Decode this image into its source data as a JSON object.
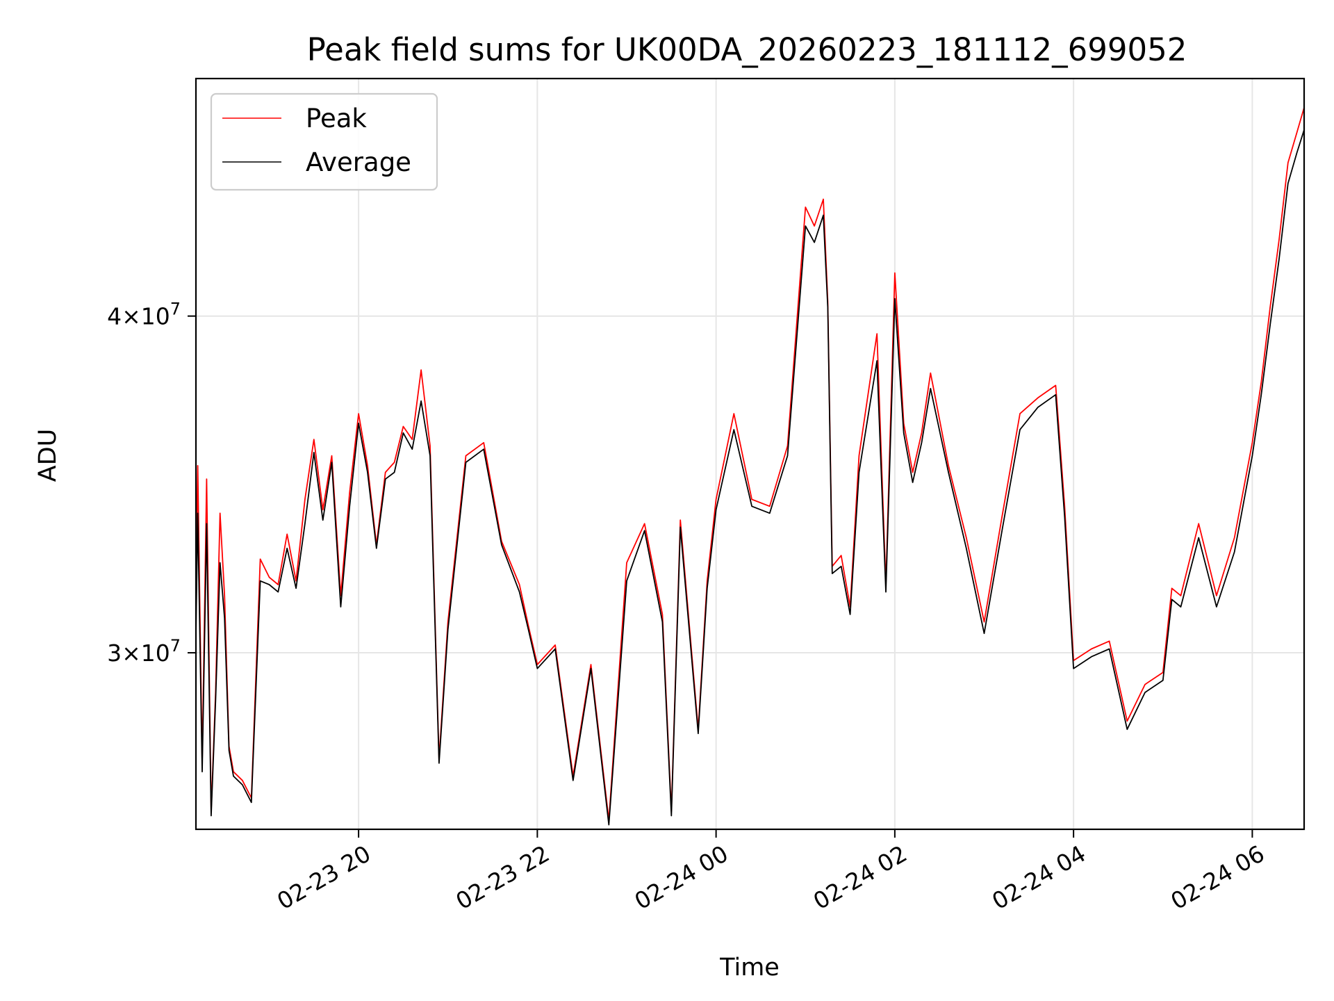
{
  "chart_data": {
    "type": "line",
    "title": "Peak field sums for UK00DA_20260223_181112_699052",
    "xlabel": "Time",
    "ylabel": "ADU",
    "x_range_hours": [
      -1.82,
      10.58
    ],
    "x_ticks": [
      {
        "hour": 0,
        "label": "02-23 20"
      },
      {
        "hour": 2,
        "label": "02-23 22"
      },
      {
        "hour": 4,
        "label": "02-24 00"
      },
      {
        "hour": 6,
        "label": "02-24 02"
      },
      {
        "hour": 8,
        "label": "02-24 04"
      },
      {
        "hour": 10,
        "label": "02-24 06"
      }
    ],
    "y_scale": "log",
    "ylim": [
      25800000,
      49000000
    ],
    "y_ticks": [
      {
        "value": 30000000,
        "mantissa": "3",
        "base": "10",
        "exp": "7"
      },
      {
        "value": 40000000,
        "mantissa": "4",
        "base": "10",
        "exp": "7"
      }
    ],
    "grid": true,
    "legend": {
      "position": "upper-left",
      "entries": [
        "Peak",
        "Average"
      ]
    },
    "series": [
      {
        "name": "Peak",
        "color": "#ff0000",
        "x": [
          -1.82,
          -1.8,
          -1.75,
          -1.7,
          -1.65,
          -1.6,
          -1.55,
          -1.5,
          -1.45,
          -1.4,
          -1.3,
          -1.2,
          -1.1,
          -1.0,
          -0.9,
          -0.8,
          -0.7,
          -0.6,
          -0.5,
          -0.4,
          -0.3,
          -0.2,
          -0.1,
          0.0,
          0.1,
          0.2,
          0.3,
          0.4,
          0.5,
          0.6,
          0.7,
          0.8,
          0.9,
          1.0,
          1.2,
          1.4,
          1.6,
          1.8,
          1.9,
          2.0,
          2.2,
          2.4,
          2.6,
          2.8,
          3.0,
          3.2,
          3.4,
          3.5,
          3.6,
          3.8,
          3.9,
          4.0,
          4.2,
          4.4,
          4.6,
          4.8,
          5.0,
          5.1,
          5.2,
          5.25,
          5.3,
          5.4,
          5.5,
          5.6,
          5.8,
          5.9,
          6.0,
          6.1,
          6.2,
          6.3,
          6.4,
          6.6,
          6.8,
          7.0,
          7.2,
          7.4,
          7.6,
          7.8,
          7.9,
          8.0,
          8.2,
          8.4,
          8.6,
          8.8,
          9.0,
          9.1,
          9.2,
          9.4,
          9.6,
          9.8,
          10.0,
          10.1,
          10.2,
          10.3,
          10.4,
          10.5,
          10.58
        ],
        "values": [
          31500000,
          35200000,
          27300000,
          34800000,
          26200000,
          29000000,
          33800000,
          31500000,
          27700000,
          27100000,
          26900000,
          26500000,
          32500000,
          32000000,
          31800000,
          33200000,
          31900000,
          34200000,
          36000000,
          33900000,
          35500000,
          31500000,
          34400000,
          36800000,
          35200000,
          32900000,
          35000000,
          35300000,
          36400000,
          36000000,
          38200000,
          35800000,
          27400000,
          30800000,
          35500000,
          35900000,
          33000000,
          31800000,
          30700000,
          29700000,
          30200000,
          27000000,
          29700000,
          26000000,
          32400000,
          33500000,
          31000000,
          26200000,
          33600000,
          28100000,
          31900000,
          34200000,
          36800000,
          34200000,
          34000000,
          35800000,
          43900000,
          43200000,
          44200000,
          40500000,
          32300000,
          32600000,
          31200000,
          35500000,
          39400000,
          31800000,
          41500000,
          36500000,
          35000000,
          36200000,
          38100000,
          35200000,
          33100000,
          30800000,
          33700000,
          36800000,
          37300000,
          37700000,
          34000000,
          29800000,
          30100000,
          30300000,
          28300000,
          29200000,
          29500000,
          31700000,
          31500000,
          33500000,
          31500000,
          33100000,
          35900000,
          37800000,
          40300000,
          42700000,
          45600000,
          46800000,
          47800000
        ]
      },
      {
        "name": "Average",
        "color": "#000000",
        "x": [
          -1.82,
          -1.8,
          -1.75,
          -1.7,
          -1.65,
          -1.6,
          -1.55,
          -1.5,
          -1.45,
          -1.4,
          -1.3,
          -1.2,
          -1.1,
          -1.0,
          -0.9,
          -0.8,
          -0.7,
          -0.6,
          -0.5,
          -0.4,
          -0.3,
          -0.2,
          -0.1,
          0.0,
          0.1,
          0.2,
          0.3,
          0.4,
          0.5,
          0.6,
          0.7,
          0.8,
          0.9,
          1.0,
          1.2,
          1.4,
          1.6,
          1.8,
          1.9,
          2.0,
          2.2,
          2.4,
          2.6,
          2.8,
          3.0,
          3.2,
          3.4,
          3.5,
          3.6,
          3.8,
          3.9,
          4.0,
          4.2,
          4.4,
          4.6,
          4.8,
          5.0,
          5.1,
          5.2,
          5.25,
          5.3,
          5.4,
          5.5,
          5.6,
          5.8,
          5.9,
          6.0,
          6.1,
          6.2,
          6.3,
          6.4,
          6.6,
          6.8,
          7.0,
          7.2,
          7.4,
          7.6,
          7.8,
          7.9,
          8.0,
          8.2,
          8.4,
          8.6,
          8.8,
          9.0,
          9.1,
          9.2,
          9.4,
          9.6,
          9.8,
          10.0,
          10.1,
          10.2,
          10.3,
          10.4,
          10.5,
          10.58
        ],
        "values": [
          30500000,
          33800000,
          27100000,
          33500000,
          26100000,
          28800000,
          32400000,
          30900000,
          27600000,
          27000000,
          26800000,
          26400000,
          31900000,
          31800000,
          31600000,
          32800000,
          31700000,
          33500000,
          35600000,
          33600000,
          35300000,
          31200000,
          34000000,
          36500000,
          35000000,
          32800000,
          34800000,
          35000000,
          36200000,
          35700000,
          37200000,
          35500000,
          27300000,
          30600000,
          35300000,
          35700000,
          32900000,
          31600000,
          30600000,
          29600000,
          30100000,
          26900000,
          29600000,
          25900000,
          31900000,
          33300000,
          30800000,
          26100000,
          33400000,
          28000000,
          31700000,
          33900000,
          36300000,
          34000000,
          33800000,
          35500000,
          43200000,
          42600000,
          43600000,
          40300000,
          32100000,
          32300000,
          31000000,
          35000000,
          38500000,
          31600000,
          40600000,
          36200000,
          34700000,
          35900000,
          37600000,
          35000000,
          32800000,
          30500000,
          33300000,
          36300000,
          37000000,
          37400000,
          33700000,
          29600000,
          29900000,
          30100000,
          28100000,
          29000000,
          29300000,
          31400000,
          31200000,
          33100000,
          31200000,
          32700000,
          35500000,
          37400000,
          39700000,
          42000000,
          44800000,
          46000000,
          46900000
        ]
      }
    ]
  }
}
